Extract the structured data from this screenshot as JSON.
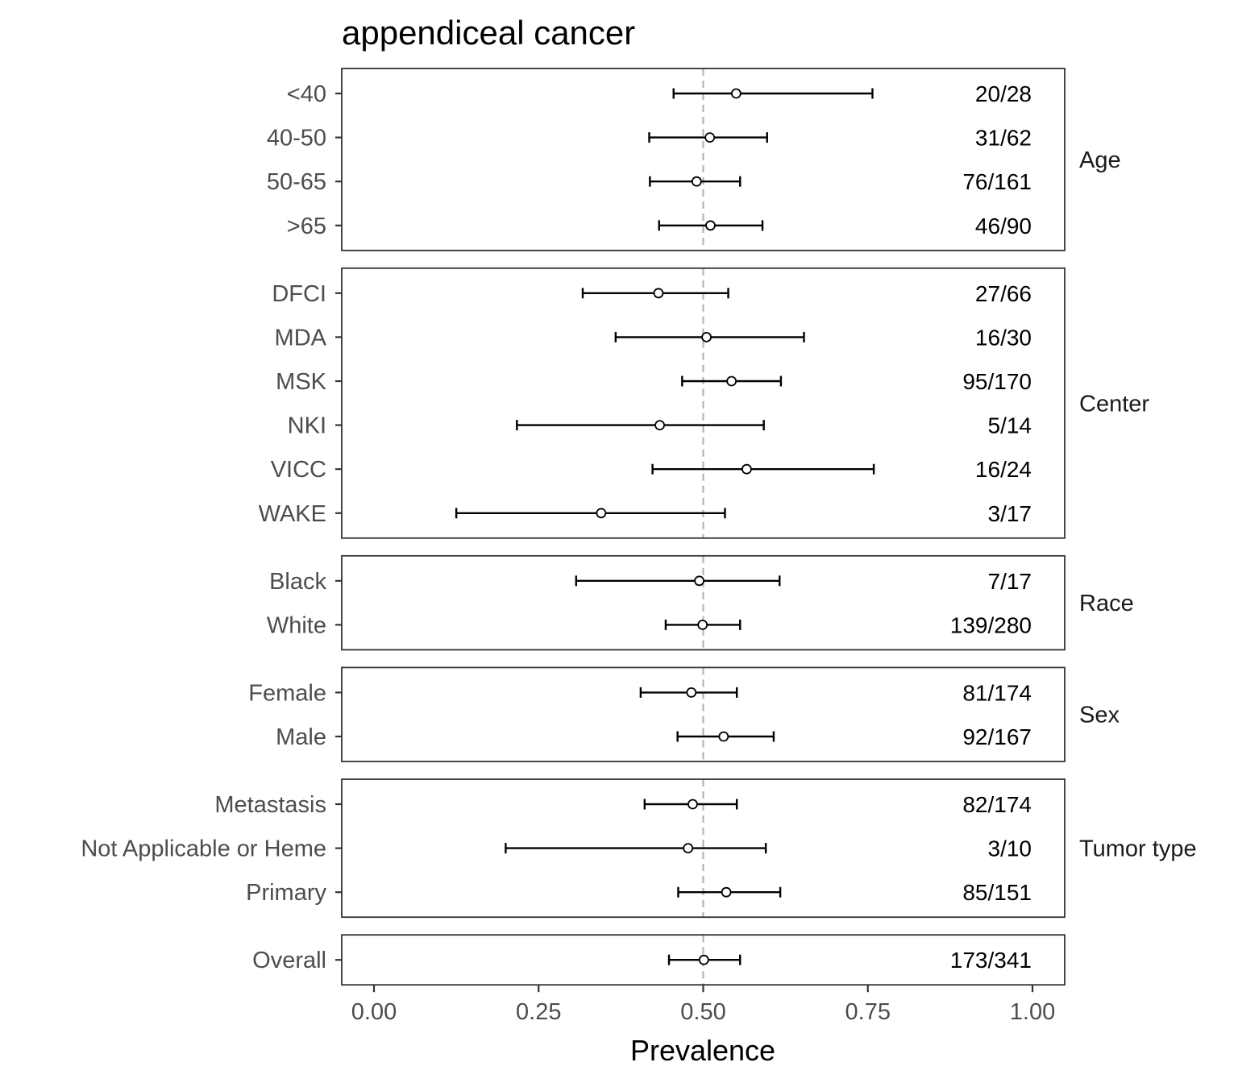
{
  "chart_data": {
    "type": "forest",
    "title": "appendiceal cancer",
    "xlabel": "Prevalence",
    "xlim": [
      0,
      1
    ],
    "xticks": [
      "0.00",
      "0.25",
      "0.50",
      "0.75",
      "1.00"
    ],
    "reference_line": 0.5,
    "panels": [
      {
        "name": "Age",
        "rows": [
          {
            "label": "<40",
            "estimate": 0.55,
            "lower": 0.455,
            "upper": 0.757,
            "count": "20/28"
          },
          {
            "label": "40-50",
            "estimate": 0.51,
            "lower": 0.418,
            "upper": 0.597,
            "count": "31/62"
          },
          {
            "label": "50-65",
            "estimate": 0.49,
            "lower": 0.419,
            "upper": 0.556,
            "count": "76/161"
          },
          {
            "label": ">65",
            "estimate": 0.511,
            "lower": 0.433,
            "upper": 0.59,
            "count": "46/90"
          }
        ]
      },
      {
        "name": "Center",
        "rows": [
          {
            "label": "DFCI",
            "estimate": 0.432,
            "lower": 0.317,
            "upper": 0.538,
            "count": "27/66"
          },
          {
            "label": "MDA",
            "estimate": 0.505,
            "lower": 0.367,
            "upper": 0.653,
            "count": "16/30"
          },
          {
            "label": "MSK",
            "estimate": 0.543,
            "lower": 0.468,
            "upper": 0.618,
            "count": "95/170"
          },
          {
            "label": "NKI",
            "estimate": 0.434,
            "lower": 0.217,
            "upper": 0.592,
            "count": "5/14"
          },
          {
            "label": "VICC",
            "estimate": 0.566,
            "lower": 0.423,
            "upper": 0.759,
            "count": "16/24"
          },
          {
            "label": "WAKE",
            "estimate": 0.345,
            "lower": 0.125,
            "upper": 0.533,
            "count": "3/17"
          }
        ]
      },
      {
        "name": "Race",
        "rows": [
          {
            "label": "Black",
            "estimate": 0.494,
            "lower": 0.307,
            "upper": 0.616,
            "count": "7/17"
          },
          {
            "label": "White",
            "estimate": 0.499,
            "lower": 0.443,
            "upper": 0.556,
            "count": "139/280"
          }
        ]
      },
      {
        "name": "Sex",
        "rows": [
          {
            "label": "Female",
            "estimate": 0.482,
            "lower": 0.405,
            "upper": 0.551,
            "count": "81/174"
          },
          {
            "label": "Male",
            "estimate": 0.531,
            "lower": 0.461,
            "upper": 0.607,
            "count": "92/167"
          }
        ]
      },
      {
        "name": "Tumor type",
        "rows": [
          {
            "label": "Metastasis",
            "estimate": 0.484,
            "lower": 0.411,
            "upper": 0.551,
            "count": "82/174"
          },
          {
            "label": "Not Applicable or Heme",
            "estimate": 0.477,
            "lower": 0.2,
            "upper": 0.595,
            "count": "3/10"
          },
          {
            "label": "Primary",
            "estimate": 0.535,
            "lower": 0.462,
            "upper": 0.617,
            "count": "85/151"
          }
        ]
      },
      {
        "name": "",
        "rows": [
          {
            "label": "Overall",
            "estimate": 0.501,
            "lower": 0.448,
            "upper": 0.556,
            "count": "173/341"
          }
        ]
      }
    ]
  }
}
